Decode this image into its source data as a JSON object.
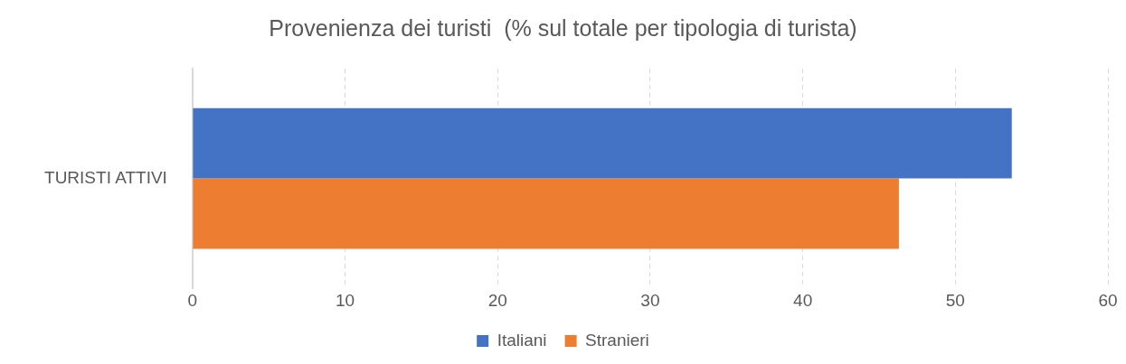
{
  "chart_data": {
    "type": "bar",
    "orientation": "horizontal",
    "title": "Provenienza dei turisti  (% sul totale per tipologia di turista)",
    "categories": [
      "TURISTI ATTIVI"
    ],
    "series": [
      {
        "name": "Italiani",
        "color": "#4472c4",
        "values": [
          53.7
        ]
      },
      {
        "name": "Stranieri",
        "color": "#ed7d31",
        "values": [
          46.3
        ]
      }
    ],
    "xlim": [
      0,
      60
    ],
    "xticks": [
      0,
      10,
      20,
      30,
      40,
      50,
      60
    ],
    "grid": "x",
    "line_style": "dashed",
    "legend": "bottom"
  }
}
